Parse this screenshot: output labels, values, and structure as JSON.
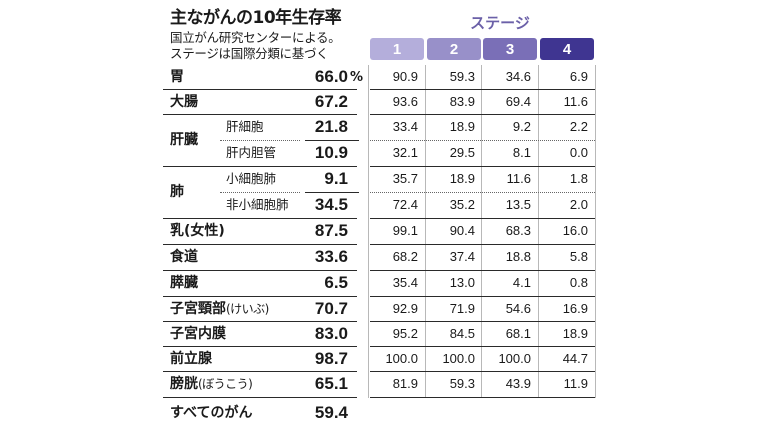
{
  "header": {
    "title": "主ながんの10年生存率",
    "subtitle1": "国立がん研究センターによる。",
    "subtitle2": "ステージは国際分類に基づく",
    "stage_label": "ステージ",
    "stages": [
      "1",
      "2",
      "3",
      "4"
    ],
    "stage_colors": [
      "#b4aedb",
      "#9890c9",
      "#7a6fb7",
      "#3f3591"
    ]
  },
  "unit": "%",
  "rows": [
    {
      "name": "胃",
      "rate": "66.0",
      "values": [
        "90.9",
        "59.3",
        "34.6",
        "6.9"
      ]
    },
    {
      "name": "大腸",
      "rate": "67.2",
      "values": [
        "93.6",
        "83.9",
        "69.4",
        "11.6"
      ]
    },
    {
      "name": "肝臓",
      "sub": "肝細胞",
      "rate": "21.8",
      "values": [
        "33.4",
        "18.9",
        "9.2",
        "2.2"
      ]
    },
    {
      "sub": "肝内胆管",
      "rate": "10.9",
      "values": [
        "32.1",
        "29.5",
        "8.1",
        "0.0"
      ]
    },
    {
      "name": "肺",
      "sub": "小細胞肺",
      "rate": "9.1",
      "values": [
        "35.7",
        "18.9",
        "11.6",
        "1.8"
      ]
    },
    {
      "sub": "非小細胞肺",
      "rate": "34.5",
      "values": [
        "72.4",
        "35.2",
        "13.5",
        "2.0"
      ]
    },
    {
      "name": "乳(女性)",
      "rate": "87.5",
      "values": [
        "99.1",
        "90.4",
        "68.3",
        "16.0"
      ]
    },
    {
      "name": "食道",
      "rate": "33.6",
      "values": [
        "68.2",
        "37.4",
        "18.8",
        "5.8"
      ]
    },
    {
      "name": "膵臓",
      "rate": "6.5",
      "values": [
        "35.4",
        "13.0",
        "4.1",
        "0.8"
      ]
    },
    {
      "name": "子宮頸部",
      "name_note": "(けいぶ)",
      "rate": "70.7",
      "values": [
        "92.9",
        "71.9",
        "54.6",
        "16.9"
      ]
    },
    {
      "name": "子宮内膜",
      "rate": "83.0",
      "values": [
        "95.2",
        "84.5",
        "68.1",
        "18.9"
      ]
    },
    {
      "name": "前立腺",
      "rate": "98.7",
      "values": [
        "100.0",
        "100.0",
        "100.0",
        "44.7"
      ]
    },
    {
      "name": "膀胱",
      "name_note": "(ぼうこう)",
      "rate": "65.1",
      "values": [
        "81.9",
        "59.3",
        "43.9",
        "11.9"
      ]
    }
  ],
  "total": {
    "name": "すべてのがん",
    "rate": "59.4"
  }
}
